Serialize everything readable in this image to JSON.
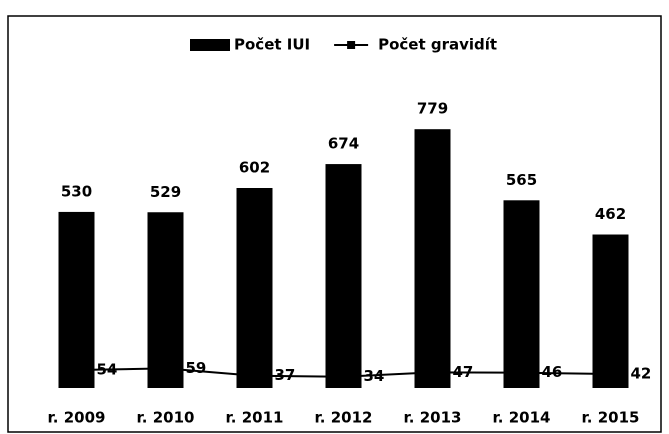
{
  "chart_data": {
    "type": "bar",
    "categories": [
      "r. 2009",
      "r. 2010",
      "r. 2011",
      "r. 2012",
      "r. 2013",
      "r. 2014",
      "r. 2015"
    ],
    "series": [
      {
        "name": "Počet IUI",
        "color": "#000000",
        "values": [
          530,
          529,
          602,
          674,
          779,
          565,
          462
        ]
      },
      {
        "name": "Počet gravidít",
        "type": "line",
        "color": "#000000",
        "values": [
          54,
          59,
          37,
          34,
          47,
          46,
          42
        ]
      }
    ],
    "ylim": [
      0,
      900
    ]
  }
}
